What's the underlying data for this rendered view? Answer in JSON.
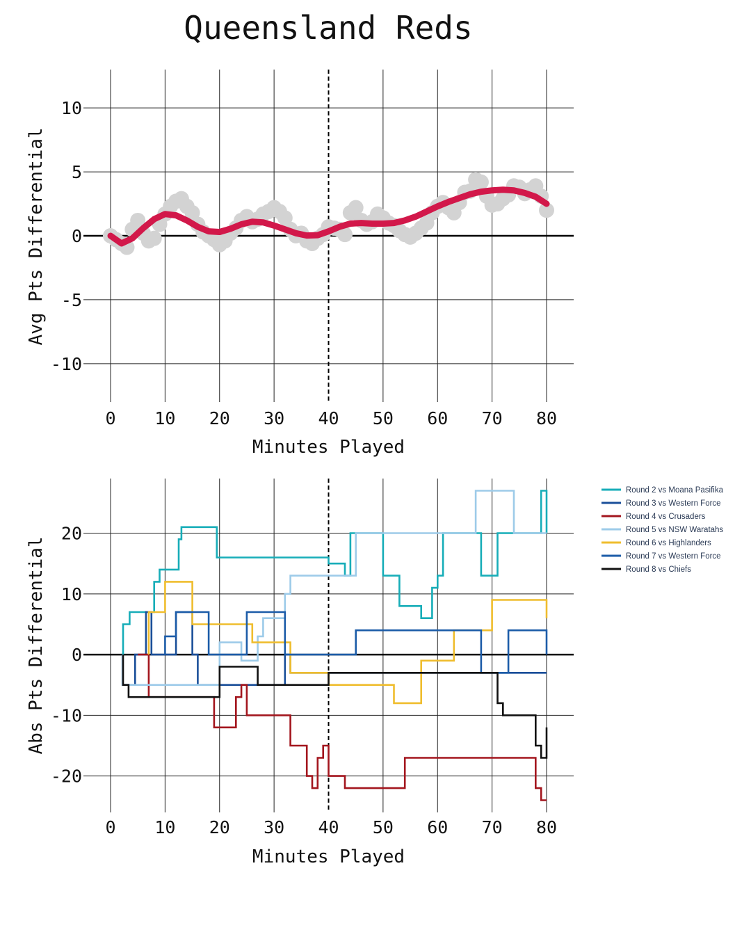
{
  "title": "Queensland Reds",
  "chart_data": [
    {
      "type": "line",
      "xlabel": "Minutes Played",
      "ylabel": "Avg Pts Differential",
      "xlim": [
        0,
        80
      ],
      "ylim": [
        -13,
        13
      ],
      "xticks": [
        0,
        10,
        20,
        30,
        40,
        50,
        60,
        70,
        80
      ],
      "yticks": [
        -10,
        -5,
        0,
        5,
        10
      ],
      "vline_dashed": 40,
      "hline": 0,
      "grid": true,
      "colors": {
        "scatter": "#d3d3d3",
        "trend": "#d2184a"
      },
      "scatter": {
        "x": [
          0,
          1,
          2,
          3,
          4,
          5,
          6,
          7,
          8,
          9,
          10,
          11,
          12,
          13,
          14,
          15,
          16,
          17,
          18,
          19,
          20,
          21,
          22,
          23,
          24,
          25,
          26,
          27,
          28,
          29,
          30,
          31,
          32,
          33,
          34,
          35,
          36,
          37,
          38,
          39,
          40,
          41,
          42,
          43,
          44,
          45,
          46,
          47,
          48,
          49,
          50,
          51,
          52,
          53,
          54,
          55,
          56,
          57,
          58,
          59,
          60,
          61,
          62,
          63,
          64,
          65,
          66,
          67,
          68,
          69,
          70,
          71,
          72,
          73,
          74,
          75,
          76,
          77,
          78,
          79,
          80
        ],
        "y": [
          0,
          -0.3,
          -0.6,
          -0.9,
          0.5,
          1.2,
          0.2,
          -0.4,
          -0.2,
          0.9,
          1.7,
          2.3,
          2.7,
          2.9,
          2.3,
          1.8,
          0.9,
          0.3,
          0,
          -0.3,
          -0.7,
          -0.4,
          0.2,
          0.6,
          1.2,
          1.5,
          1.1,
          1.3,
          1.7,
          1.9,
          2.2,
          1.9,
          1.4,
          0.5,
          0,
          0.2,
          -0.4,
          -0.6,
          -0.2,
          0.1,
          0.7,
          0.6,
          0.5,
          0.1,
          1.8,
          2.2,
          1.2,
          0.9,
          1.1,
          1.7,
          1.4,
          1.0,
          0.8,
          0.4,
          0.1,
          -0.1,
          0.2,
          0.6,
          1.0,
          1.8,
          2.3,
          2.6,
          2.2,
          1.8,
          2.6,
          3.4,
          3.5,
          4.4,
          4.2,
          3.1,
          2.4,
          2.5,
          2.9,
          3.2,
          3.9,
          3.8,
          3.3,
          3.6,
          3.9,
          3.1,
          2.0
        ]
      },
      "trend": {
        "x": [
          0,
          2,
          4,
          6,
          8,
          10,
          12,
          14,
          16,
          18,
          20,
          22,
          24,
          26,
          28,
          30,
          32,
          34,
          36,
          38,
          40,
          42,
          44,
          46,
          48,
          50,
          52,
          54,
          56,
          58,
          60,
          62,
          64,
          66,
          68,
          70,
          72,
          74,
          76,
          78,
          80
        ],
        "y": [
          0,
          -0.6,
          -0.2,
          0.6,
          1.3,
          1.7,
          1.6,
          1.2,
          0.7,
          0.35,
          0.3,
          0.55,
          0.9,
          1.1,
          1.05,
          0.8,
          0.5,
          0.2,
          0.02,
          0.05,
          0.35,
          0.7,
          0.95,
          1.0,
          0.95,
          0.95,
          1.0,
          1.2,
          1.5,
          1.9,
          2.3,
          2.65,
          2.95,
          3.25,
          3.45,
          3.55,
          3.6,
          3.55,
          3.35,
          3.05,
          2.5
        ]
      }
    },
    {
      "type": "line",
      "step": true,
      "xlabel": "Minutes Played",
      "ylabel": "Abs Pts Differential",
      "xlim": [
        0,
        80
      ],
      "ylim": [
        -26,
        29
      ],
      "xticks": [
        0,
        10,
        20,
        30,
        40,
        50,
        60,
        70,
        80
      ],
      "yticks": [
        -20,
        -10,
        0,
        10,
        20
      ],
      "vline_dashed": 40,
      "hline": 0,
      "grid": true,
      "legend_position": "right",
      "series": [
        {
          "name": "Round 2 vs Moana Pasifika",
          "color": "#17adb8",
          "x": [
            2.3,
            3.5,
            5.5,
            8,
            9,
            11,
            12.5,
            13,
            19,
            19.5,
            40,
            40,
            43,
            44,
            49,
            50,
            52.5,
            53,
            57,
            58,
            59,
            60,
            61,
            67,
            68,
            70,
            71,
            72,
            73,
            79,
            80
          ],
          "y": [
            5,
            7,
            7,
            12,
            14,
            14,
            19,
            21,
            21,
            16,
            16,
            15,
            13,
            20,
            20,
            13,
            13,
            8,
            6,
            6,
            11,
            13,
            20,
            20,
            13,
            13,
            20,
            20,
            20,
            27,
            20
          ]
        },
        {
          "name": "Round 3 vs Western Force",
          "color": "#1a4f99",
          "x": [
            2.2,
            4.5,
            6.5,
            7.5,
            12,
            15,
            16,
            32,
            33,
            41,
            80
          ],
          "y": [
            -5,
            0,
            7,
            0,
            7,
            0,
            -5,
            0,
            -3,
            -3,
            -3
          ]
        },
        {
          "name": "Round 4 vs Crusaders",
          "color": "#a3161e",
          "x": [
            5,
            7,
            19,
            21,
            23,
            24,
            25,
            26,
            32,
            33,
            36,
            37,
            38,
            39,
            40,
            42,
            43,
            54,
            78,
            79,
            80
          ],
          "y": [
            0,
            -7,
            -12,
            -12,
            -7,
            -5,
            -10,
            -10,
            -10,
            -15,
            -20,
            -22,
            -17,
            -15,
            -20,
            -20,
            -22,
            -17,
            -22,
            -24,
            -24
          ]
        },
        {
          "name": "Round 5 vs NSW Waratahs",
          "color": "#9dcbe9",
          "x": [
            2.2,
            19,
            20,
            21.5,
            24,
            27,
            28,
            29,
            32,
            33,
            45,
            66,
            67,
            73,
            74,
            80
          ],
          "y": [
            -5,
            -5,
            2,
            2,
            -1,
            3,
            6,
            6,
            10,
            13,
            20,
            20,
            27,
            27,
            20,
            20
          ]
        },
        {
          "name": "Round 6 vs Highlanders",
          "color": "#efbd2e",
          "x": [
            7,
            9,
            10,
            14,
            15,
            25,
            26,
            32,
            33,
            40,
            41,
            51,
            52,
            56,
            57,
            62,
            63,
            69,
            70,
            80
          ],
          "y": [
            7,
            7,
            12,
            12,
            5,
            5,
            2,
            2,
            -3,
            -5,
            -5,
            -5,
            -8,
            -8,
            -1,
            -1,
            4,
            4,
            9,
            6
          ]
        },
        {
          "name": "Round 7 vs Western Force",
          "color": "#1c5ca8",
          "x": [
            10,
            12,
            16,
            18,
            24,
            25,
            31,
            32,
            43,
            45,
            63,
            68,
            70,
            72,
            73,
            78,
            80
          ],
          "y": [
            3,
            7,
            7,
            0,
            0,
            7,
            7,
            0,
            0,
            4,
            4,
            -3,
            -3,
            -3,
            4,
            4,
            0
          ]
        },
        {
          "name": "Round 8 vs Chiefs",
          "color": "#111111",
          "x": [
            2.3,
            3.3,
            19,
            20,
            26,
            27,
            38,
            39,
            40,
            45,
            56,
            57,
            60,
            70,
            71,
            72,
            78,
            79,
            80
          ],
          "y": [
            -5,
            -7,
            -7,
            -2,
            -2,
            -5,
            -5,
            -5,
            -3,
            -3,
            -3,
            -3,
            -3,
            -3,
            -8,
            -10,
            -15,
            -17,
            -12
          ]
        }
      ]
    }
  ]
}
